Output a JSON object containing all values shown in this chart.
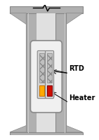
{
  "fig_bg": "#ffffff",
  "pipe_outer_color": "#b0b0b0",
  "pipe_dark_edge": "#888888",
  "pipe_inner_color": "#c8c8c8",
  "pipe_light_inner": "#e0e0e0",
  "window_bg": "#f0f0f0",
  "window_edge": "#888888",
  "probe_body_color": "#d4d4d4",
  "probe_edge_color": "#888888",
  "hatch_color": "#aaaaaa",
  "rtd_color": "#ffaa00",
  "rtd_edge": "#cc7700",
  "heater_color": "#cc1100",
  "heater_edge": "#880000",
  "arrow_color": "#000000",
  "text_color": "#000000",
  "label_rtd": "RTD",
  "label_heater": "Heater",
  "label_rtd_fontsize": 7,
  "label_heater_fontsize": 7,
  "zigzag_color": "#000000"
}
